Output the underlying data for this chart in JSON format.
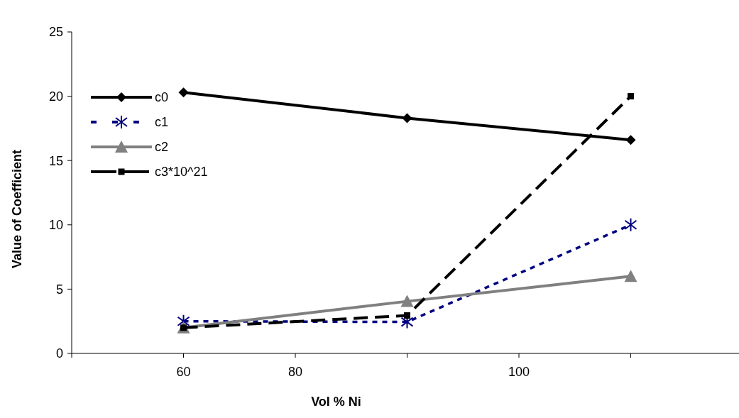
{
  "chart_data": {
    "type": "line",
    "xlabel": "Vol % Ni",
    "ylabel": "Value of Coefficient",
    "categories": [
      "60",
      "80",
      null,
      "100",
      null
    ],
    "ylim": [
      0,
      25
    ],
    "yticks": [
      0,
      5,
      10,
      15,
      20,
      25
    ],
    "grid": false,
    "legend": "left",
    "series": [
      {
        "name": "c0",
        "color": "#000000",
        "values": [
          20.3,
          null,
          18.3,
          null,
          16.6
        ],
        "marker": "diamond",
        "line_style": "solid"
      },
      {
        "name": "c1",
        "color": "#000080",
        "values": [
          2.5,
          null,
          2.45,
          null,
          10
        ],
        "marker": "cross",
        "line_style": "dashed"
      },
      {
        "name": "c2",
        "color": "#808080",
        "values": [
          2,
          null,
          4.05,
          null,
          6
        ],
        "marker": "triangle",
        "line_style": "solid"
      },
      {
        "name": "c3*10^21",
        "color": "#000000",
        "values": [
          2,
          null,
          2.95,
          null,
          20
        ],
        "marker": "square",
        "line_style": "longdash"
      }
    ]
  }
}
